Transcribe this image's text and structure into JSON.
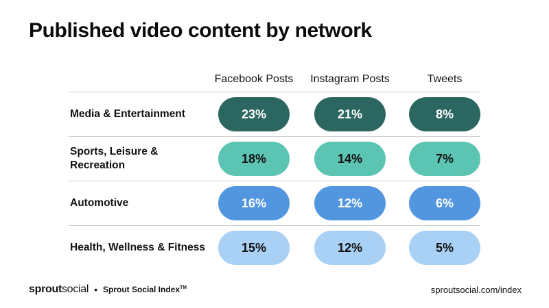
{
  "title": "Published video content by network",
  "chart_data": {
    "type": "table",
    "title": "Published video content by network",
    "columns": [
      "Facebook Posts",
      "Instagram Posts",
      "Tweets"
    ],
    "rows": [
      {
        "label": "Media & Entertainment",
        "values": [
          "23%",
          "21%",
          "8%"
        ],
        "color": "#2b6660",
        "text_color": "#ffffff"
      },
      {
        "label": "Sports, Leisure & Recreation",
        "values": [
          "18%",
          "14%",
          "7%"
        ],
        "color": "#5cc4b2",
        "text_color": "#111111"
      },
      {
        "label": "Automotive",
        "values": [
          "16%",
          "12%",
          "6%"
        ],
        "color": "#5396e0",
        "text_color": "#ffffff"
      },
      {
        "label": "Health, Wellness & Fitness",
        "values": [
          "15%",
          "12%",
          "5%"
        ],
        "color": "#a9d0f5",
        "text_color": "#111111"
      }
    ]
  },
  "footer": {
    "brand_part1": "sprout",
    "brand_part2": "social",
    "separator": "•",
    "index_name": "Sprout Social Index",
    "trademark": "TM",
    "url": "sproutsocial.com/index"
  }
}
